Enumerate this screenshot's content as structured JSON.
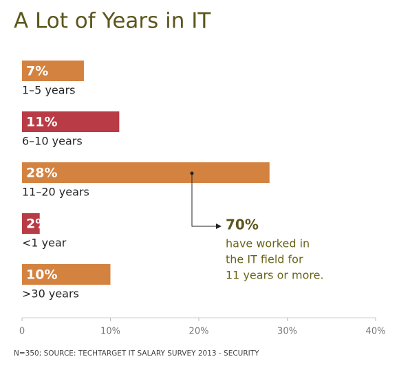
{
  "chart_data": {
    "type": "bar",
    "title": "A Lot of Years in IT",
    "categories": [
      "1–5 years",
      "6–10 years",
      "11–20 years",
      "<1 year",
      ">30 years"
    ],
    "values": [
      7,
      11,
      28,
      2,
      10
    ],
    "value_labels": [
      "7%",
      "11%",
      "28%",
      "2%",
      "10%"
    ],
    "colors": [
      "#d4823f",
      "#b93b45",
      "#d4823f",
      "#b93b45",
      "#d4823f"
    ],
    "xlim": [
      0,
      40
    ],
    "xticks": [
      0,
      {
        "value": 10,
        "label": "10%"
      },
      {
        "value": 20,
        "label": "20%"
      },
      {
        "value": 30,
        "label": "30%"
      },
      {
        "value": 40,
        "label": "40%"
      }
    ],
    "annotation": {
      "label": "70%",
      "lines": [
        "have worked in",
        "the IT field for",
        "11 years or more."
      ]
    },
    "note": "N=350; SOURCE: TECHTARGET IT SALARY SURVEY 2013 - SECURITY"
  }
}
